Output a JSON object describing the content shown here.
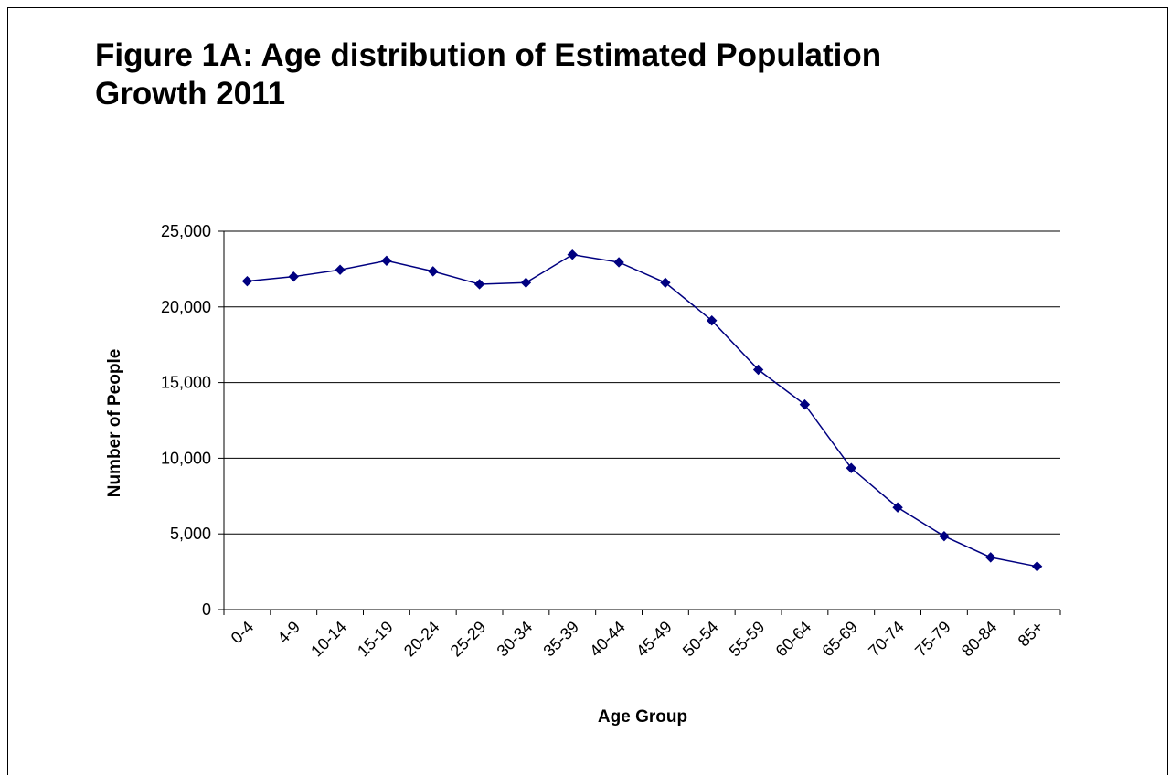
{
  "chart_data": {
    "type": "line",
    "title": "Figure 1A: Age distribution of Estimated Population Growth 2011",
    "xlabel": "Age Group",
    "ylabel": "Number of People",
    "categories": [
      "0-4",
      "4-9",
      "10-14",
      "15-19",
      "20-24",
      "25-29",
      "30-34",
      "35-39",
      "40-44",
      "45-49",
      "50-54",
      "55-59",
      "60-64",
      "65-69",
      "70-74",
      "75-79",
      "80-84",
      "85+"
    ],
    "series": [
      {
        "values": [
          21700,
          22000,
          22450,
          23050,
          22350,
          21500,
          21600,
          23450,
          22950,
          21600,
          19100,
          15850,
          13550,
          9350,
          6750,
          4850,
          3450,
          2850
        ],
        "color": "#000080"
      }
    ],
    "ylim": [
      0,
      25000
    ],
    "yticks": [
      0,
      5000,
      10000,
      15000,
      20000,
      25000
    ],
    "ytick_labels": [
      "0",
      "5,000",
      "10,000",
      "15,000",
      "20,000",
      "25,000"
    ],
    "grid": true,
    "legend": "none"
  }
}
